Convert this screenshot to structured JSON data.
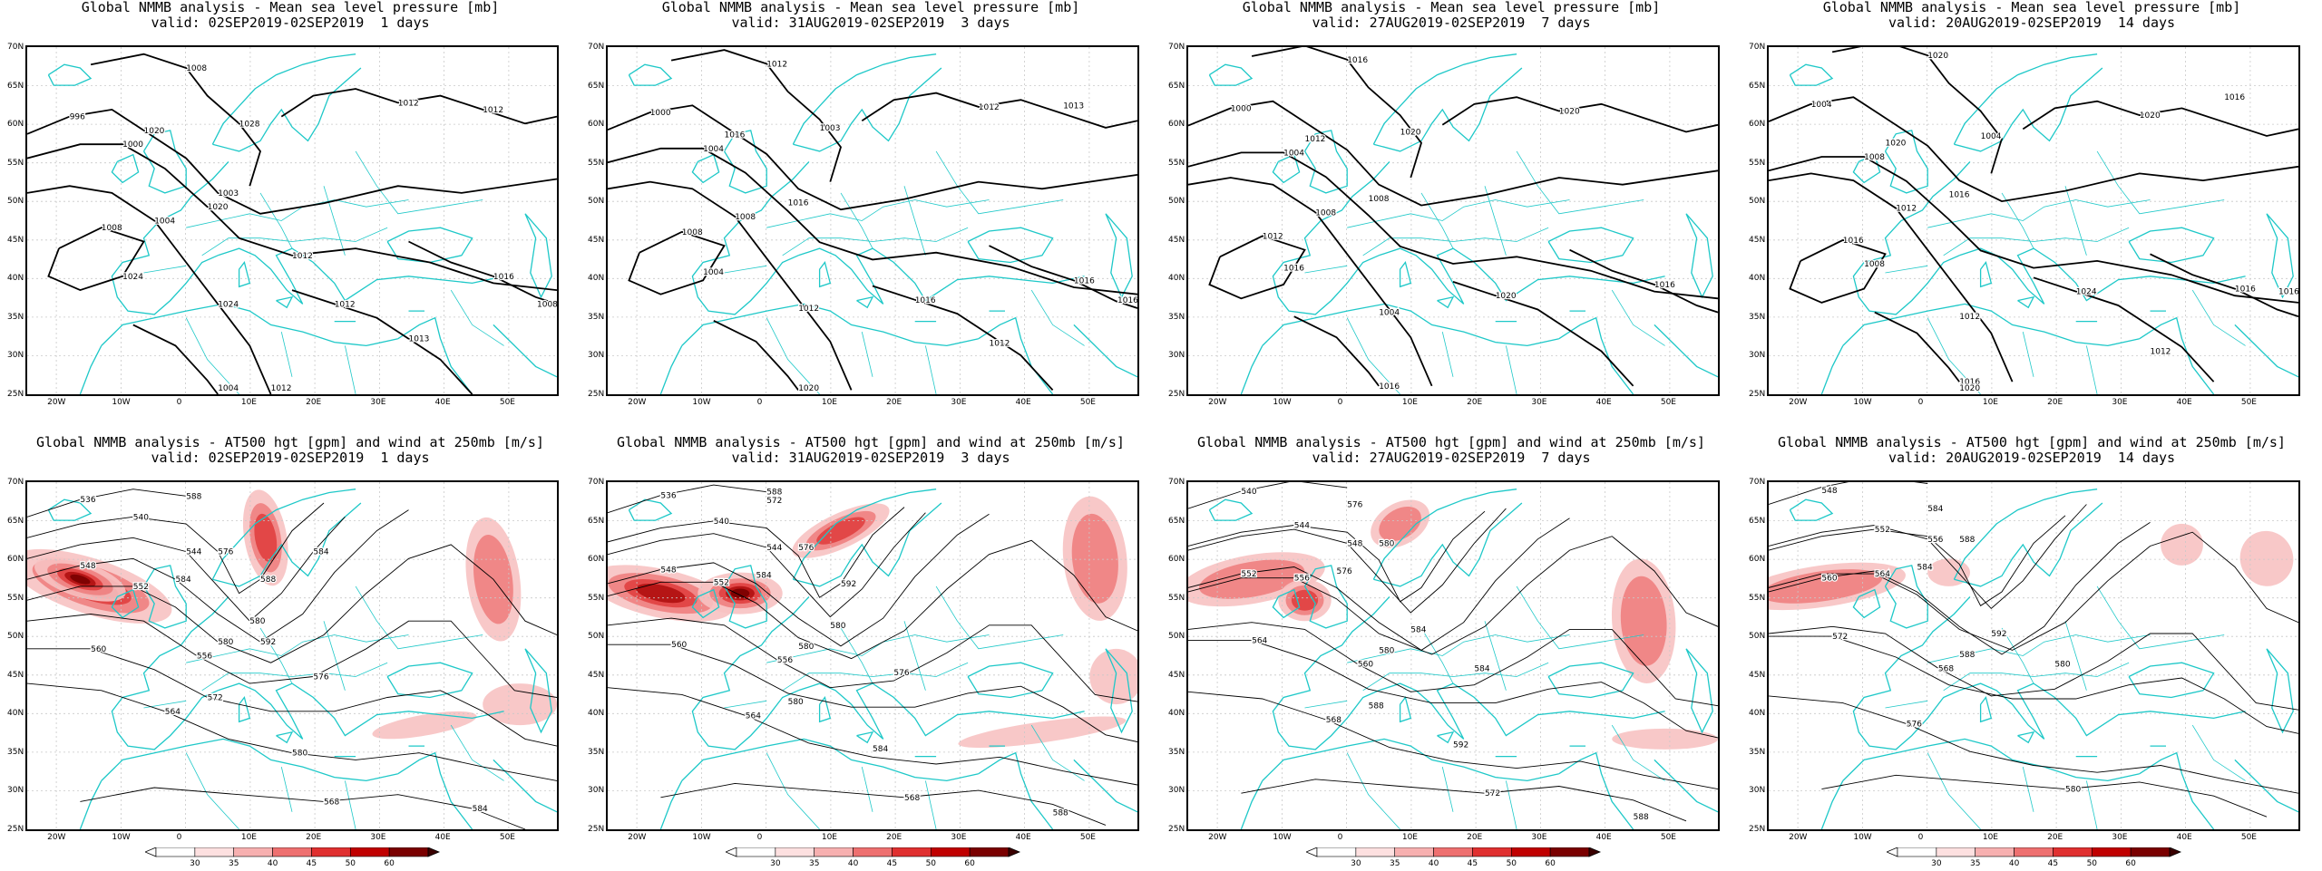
{
  "lat_labels": [
    "70N",
    "65N",
    "60N",
    "55N",
    "50N",
    "45N",
    "40N",
    "35N",
    "30N",
    "25N"
  ],
  "lon_labels": [
    "20W",
    "10W",
    "0",
    "10E",
    "20E",
    "30E",
    "40E",
    "50E"
  ],
  "colorbar_ticks": [
    "30",
    "35",
    "40",
    "45",
    "50",
    "60"
  ],
  "colors": {
    "coast": "#1ec8c8",
    "grid": "#c8c8c8",
    "contour": "#000000",
    "wind_light": "#f7c2c2",
    "wind_mid": "#e04040",
    "wind_dark": "#7a0000"
  },
  "panels": [
    {
      "line1": "Global NMMB analysis - Mean sea level pressure [mb]",
      "line2": "valid: 02SEP2019-02SEP2019  1 days",
      "kind": "mslp",
      "contour_labels": [
        "996",
        "1000",
        "1004",
        "1008",
        "1008",
        "1012",
        "1012",
        "1016",
        "1016",
        "1020",
        "1020",
        "1024",
        "1024",
        "1028",
        "1012",
        "1013",
        "1008",
        "1004",
        "1003",
        "1012",
        "1012"
      ]
    },
    {
      "line1": "Global NMMB analysis - Mean sea level pressure [mb]",
      "line2": "valid: 31AUG2019-02SEP2019  3 days",
      "kind": "mslp",
      "contour_labels": [
        "1000",
        "1004",
        "1008",
        "1008",
        "1012",
        "1012",
        "1016",
        "1016",
        "1020",
        "1016",
        "1016",
        "1012",
        "1004",
        "1003",
        "1013",
        "1012",
        "1016"
      ]
    },
    {
      "line1": "Global NMMB analysis - Mean sea level pressure [mb]",
      "line2": "valid: 27AUG2019-02SEP2019  7 days",
      "kind": "mslp",
      "contour_labels": [
        "1000",
        "1004",
        "1008",
        "1012",
        "1016",
        "1020",
        "1020",
        "1016",
        "1016",
        "1012",
        "1008",
        "1004",
        "1016",
        "1020"
      ]
    },
    {
      "line1": "Global NMMB analysis - Mean sea level pressure [mb]",
      "line2": "valid: 20AUG2019-02SEP2019  14 days",
      "kind": "mslp",
      "contour_labels": [
        "1004",
        "1008",
        "1012",
        "1016",
        "1020",
        "1020",
        "1024",
        "1016",
        "1016",
        "1020",
        "1016",
        "1012",
        "1008",
        "1004",
        "1016",
        "1012",
        "1016",
        "1020"
      ]
    },
    {
      "line1": "Global NMMB analysis - AT500 hgt [gpm] and wind at 250mb [m/s]",
      "line2": "valid: 02SEP2019-02SEP2019  1 days",
      "kind": "hgt",
      "contour_labels": [
        "536",
        "540",
        "544",
        "548",
        "552",
        "556",
        "560",
        "564",
        "568",
        "572",
        "576",
        "580",
        "584",
        "580",
        "576",
        "572",
        "580",
        "584",
        "588",
        "588",
        "584",
        "592"
      ]
    },
    {
      "line1": "Global NMMB analysis - AT500 hgt [gpm] and wind at 250mb [m/s]",
      "line2": "valid: 31AUG2019-02SEP2019  3 days",
      "kind": "hgt",
      "contour_labels": [
        "536",
        "540",
        "544",
        "548",
        "552",
        "556",
        "560",
        "564",
        "568",
        "572",
        "576",
        "580",
        "584",
        "580",
        "576",
        "580",
        "584",
        "588",
        "588",
        "592"
      ]
    },
    {
      "line1": "Global NMMB analysis - AT500 hgt [gpm] and wind at 250mb [m/s]",
      "line2": "valid: 27AUG2019-02SEP2019  7 days",
      "kind": "hgt",
      "contour_labels": [
        "540",
        "544",
        "548",
        "552",
        "556",
        "560",
        "564",
        "568",
        "572",
        "576",
        "580",
        "584",
        "576",
        "580",
        "584",
        "588",
        "592",
        "588"
      ]
    },
    {
      "line1": "Global NMMB analysis - AT500 hgt [gpm] and wind at 250mb [m/s]",
      "line2": "valid: 20AUG2019-02SEP2019  14 days",
      "kind": "hgt",
      "contour_labels": [
        "548",
        "552",
        "556",
        "560",
        "564",
        "568",
        "572",
        "576",
        "580",
        "584",
        "588",
        "592",
        "584",
        "588",
        "580"
      ]
    }
  ]
}
